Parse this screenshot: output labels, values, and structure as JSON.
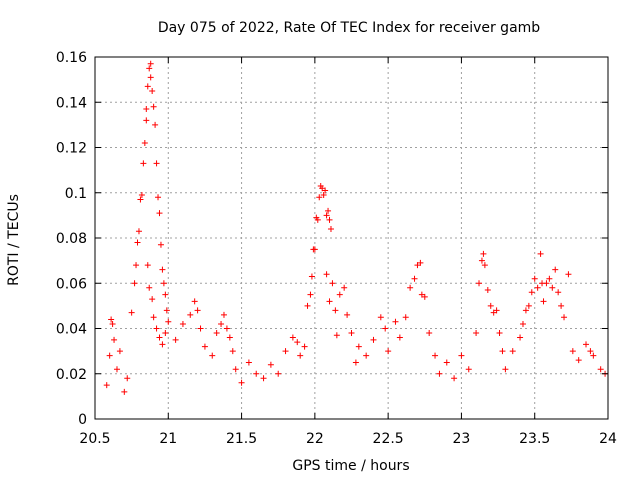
{
  "chart_data": {
    "type": "scatter",
    "title": "Day 075 of 2022, Rate Of TEC Index for receiver gamb",
    "xlabel": "GPS time / hours",
    "ylabel": "ROTI / TECUs",
    "xlim": [
      20.5,
      24
    ],
    "ylim": [
      0,
      0.16
    ],
    "xticks": [
      20.5,
      21,
      21.5,
      22,
      22.5,
      23,
      23.5,
      24
    ],
    "xtick_labels": [
      "20.5",
      "21",
      "21.5",
      "22",
      "22.5",
      "23",
      "23.5",
      "24"
    ],
    "yticks": [
      0,
      0.02,
      0.04,
      0.06,
      0.08,
      0.1,
      0.12,
      0.14,
      0.16
    ],
    "ytick_labels": [
      "0",
      "0.02",
      "0.04",
      "0.06",
      "0.08",
      "0.1",
      "0.12",
      "0.14",
      "0.16"
    ],
    "grid": true,
    "marker": "+",
    "series": [
      {
        "name": "ROTI",
        "color": "#ff0000",
        "points": [
          [
            20.58,
            0.015
          ],
          [
            20.6,
            0.028
          ],
          [
            20.61,
            0.044
          ],
          [
            20.62,
            0.042
          ],
          [
            20.63,
            0.035
          ],
          [
            20.65,
            0.022
          ],
          [
            20.67,
            0.03
          ],
          [
            20.7,
            0.012
          ],
          [
            20.72,
            0.018
          ],
          [
            20.75,
            0.047
          ],
          [
            20.77,
            0.06
          ],
          [
            20.78,
            0.068
          ],
          [
            20.79,
            0.078
          ],
          [
            20.8,
            0.083
          ],
          [
            20.81,
            0.097
          ],
          [
            20.82,
            0.099
          ],
          [
            20.83,
            0.113
          ],
          [
            20.84,
            0.122
          ],
          [
            20.85,
            0.132
          ],
          [
            20.85,
            0.137
          ],
          [
            20.86,
            0.147
          ],
          [
            20.87,
            0.155
          ],
          [
            20.88,
            0.157
          ],
          [
            20.88,
            0.151
          ],
          [
            20.89,
            0.145
          ],
          [
            20.9,
            0.138
          ],
          [
            20.91,
            0.13
          ],
          [
            20.92,
            0.113
          ],
          [
            20.93,
            0.098
          ],
          [
            20.94,
            0.091
          ],
          [
            20.95,
            0.077
          ],
          [
            20.96,
            0.066
          ],
          [
            20.97,
            0.06
          ],
          [
            20.98,
            0.055
          ],
          [
            20.99,
            0.048
          ],
          [
            21.0,
            0.043
          ],
          [
            20.86,
            0.068
          ],
          [
            20.87,
            0.058
          ],
          [
            20.89,
            0.053
          ],
          [
            20.9,
            0.045
          ],
          [
            20.92,
            0.04
          ],
          [
            20.94,
            0.036
          ],
          [
            20.96,
            0.033
          ],
          [
            20.98,
            0.038
          ],
          [
            21.05,
            0.035
          ],
          [
            21.1,
            0.042
          ],
          [
            21.15,
            0.046
          ],
          [
            21.18,
            0.052
          ],
          [
            21.2,
            0.048
          ],
          [
            21.22,
            0.04
          ],
          [
            21.25,
            0.032
          ],
          [
            21.3,
            0.028
          ],
          [
            21.33,
            0.038
          ],
          [
            21.36,
            0.042
          ],
          [
            21.38,
            0.046
          ],
          [
            21.4,
            0.04
          ],
          [
            21.42,
            0.036
          ],
          [
            21.44,
            0.03
          ],
          [
            21.46,
            0.022
          ],
          [
            21.5,
            0.016
          ],
          [
            21.55,
            0.025
          ],
          [
            21.6,
            0.02
          ],
          [
            21.65,
            0.018
          ],
          [
            21.7,
            0.024
          ],
          [
            21.75,
            0.02
          ],
          [
            21.8,
            0.03
          ],
          [
            21.85,
            0.036
          ],
          [
            21.88,
            0.034
          ],
          [
            21.9,
            0.028
          ],
          [
            21.93,
            0.032
          ],
          [
            21.95,
            0.05
          ],
          [
            21.97,
            0.055
          ],
          [
            21.98,
            0.063
          ],
          [
            21.99,
            0.075
          ],
          [
            22.0,
            0.075
          ],
          [
            22.01,
            0.089
          ],
          [
            22.02,
            0.088
          ],
          [
            22.03,
            0.098
          ],
          [
            22.04,
            0.103
          ],
          [
            22.05,
            0.102
          ],
          [
            22.06,
            0.099
          ],
          [
            22.07,
            0.101
          ],
          [
            22.08,
            0.09
          ],
          [
            22.09,
            0.092
          ],
          [
            22.1,
            0.088
          ],
          [
            22.11,
            0.084
          ],
          [
            22.08,
            0.064
          ],
          [
            22.1,
            0.052
          ],
          [
            22.12,
            0.06
          ],
          [
            22.14,
            0.048
          ],
          [
            22.15,
            0.037
          ],
          [
            22.17,
            0.055
          ],
          [
            22.2,
            0.058
          ],
          [
            22.22,
            0.046
          ],
          [
            22.25,
            0.038
          ],
          [
            22.28,
            0.025
          ],
          [
            22.3,
            0.032
          ],
          [
            22.35,
            0.028
          ],
          [
            22.4,
            0.035
          ],
          [
            22.45,
            0.045
          ],
          [
            22.48,
            0.04
          ],
          [
            22.5,
            0.03
          ],
          [
            22.55,
            0.043
          ],
          [
            22.58,
            0.036
          ],
          [
            22.62,
            0.045
          ],
          [
            22.65,
            0.058
          ],
          [
            22.68,
            0.062
          ],
          [
            22.7,
            0.068
          ],
          [
            22.72,
            0.069
          ],
          [
            22.73,
            0.055
          ],
          [
            22.75,
            0.054
          ],
          [
            22.78,
            0.038
          ],
          [
            22.82,
            0.028
          ],
          [
            22.85,
            0.02
          ],
          [
            22.9,
            0.025
          ],
          [
            22.95,
            0.018
          ],
          [
            23.0,
            0.028
          ],
          [
            23.05,
            0.022
          ],
          [
            23.1,
            0.038
          ],
          [
            23.12,
            0.06
          ],
          [
            23.14,
            0.07
          ],
          [
            23.15,
            0.073
          ],
          [
            23.16,
            0.068
          ],
          [
            23.18,
            0.057
          ],
          [
            23.2,
            0.05
          ],
          [
            23.22,
            0.047
          ],
          [
            23.24,
            0.048
          ],
          [
            23.26,
            0.038
          ],
          [
            23.28,
            0.03
          ],
          [
            23.3,
            0.022
          ],
          [
            23.35,
            0.03
          ],
          [
            23.4,
            0.036
          ],
          [
            23.42,
            0.042
          ],
          [
            23.44,
            0.048
          ],
          [
            23.46,
            0.05
          ],
          [
            23.48,
            0.056
          ],
          [
            23.5,
            0.062
          ],
          [
            23.52,
            0.058
          ],
          [
            23.54,
            0.073
          ],
          [
            23.55,
            0.06
          ],
          [
            23.56,
            0.052
          ],
          [
            23.58,
            0.06
          ],
          [
            23.6,
            0.062
          ],
          [
            23.62,
            0.058
          ],
          [
            23.64,
            0.066
          ],
          [
            23.66,
            0.056
          ],
          [
            23.68,
            0.05
          ],
          [
            23.7,
            0.045
          ],
          [
            23.73,
            0.064
          ],
          [
            23.76,
            0.03
          ],
          [
            23.8,
            0.026
          ],
          [
            23.85,
            0.033
          ],
          [
            23.88,
            0.03
          ],
          [
            23.9,
            0.028
          ],
          [
            23.95,
            0.022
          ],
          [
            23.98,
            0.02
          ]
        ]
      }
    ]
  }
}
